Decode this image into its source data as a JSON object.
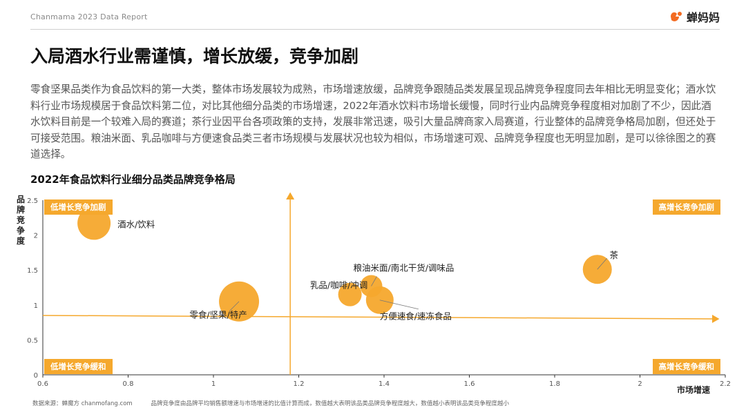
{
  "header": {
    "report_label": "Chanmama 2023 Data Report",
    "brand_name": "蝉妈妈",
    "brand_color": "#f36b21"
  },
  "page": {
    "title": "入局酒水行业需谨慎，增长放缓，竞争加剧",
    "paragraph": "零食坚果品类作为食品饮料的第一大类，整体市场发展较为成熟，市场增速放缓，品牌竞争跟随品类发展呈现品牌竞争程度同去年相比无明显变化；酒水饮料行业市场规模居于食品饮料第二位，对比其他细分品类的市场增速，2022年酒水饮料市场增长缓慢，同时行业内品牌竞争程度相对加剧了不少，因此酒水饮料目前是一个较难入局的赛道；茶行业因平台各项政策的支持，发展非常迅速，吸引大量品牌商家入局赛道，行业整体的品牌竞争格局加剧，但还处于可接受范围。粮油米面、乳品咖啡与方便速食品类三者市场规模与发展状况也较为相似，市场增速可观、品牌竞争程度也无明显加剧，是可以徐徐图之的赛道选择。"
  },
  "chart_data": {
    "type": "scatter",
    "title": "2022年食品饮料行业细分品类品牌竞争格局",
    "xlabel": "市场增速",
    "ylabel": "品牌竞争度",
    "xlim": [
      0.6,
      2.2
    ],
    "ylim": [
      0,
      2.5
    ],
    "xticks": [
      "0.6",
      "0.8",
      "1",
      "1.2",
      "1.4",
      "1.6",
      "1.8",
      "2",
      "2.2"
    ],
    "yticks": [
      "0",
      "0.5",
      "1",
      "1.5",
      "2",
      "2.5"
    ],
    "grid": false,
    "divider_x": 1.18,
    "divider_y": 0.85,
    "bubble_color": "#f5a82d",
    "points": [
      {
        "name": "酒水/饮料",
        "x": 0.72,
        "y": 2.17
      },
      {
        "name": "零食/坚果/特产",
        "x": 1.06,
        "y": 1.05
      },
      {
        "name": "乳品/咖啡/冲调",
        "x": 1.32,
        "y": 1.15
      },
      {
        "name": "粮油米面/南北干货/调味品",
        "x": 1.37,
        "y": 1.27
      },
      {
        "name": "方便速食/速冻食品",
        "x": 1.39,
        "y": 1.07
      },
      {
        "name": "茶",
        "x": 1.9,
        "y": 1.51
      }
    ],
    "quadrants": {
      "top_left": "低增长竞争加剧",
      "top_right": "高增长竞争加剧",
      "bottom_left": "低增长竞争缓和",
      "bottom_right": "高增长竞争缓和"
    }
  },
  "footer": {
    "source": "数据来源：蝉魔方 chanmofang.com",
    "note": "品牌竞争度由品牌平均销售额增速与市场增速的比值计算而成，数值越大表明该品类品牌竞争程度越大，数值越小表明该品类竞争程度越小"
  }
}
